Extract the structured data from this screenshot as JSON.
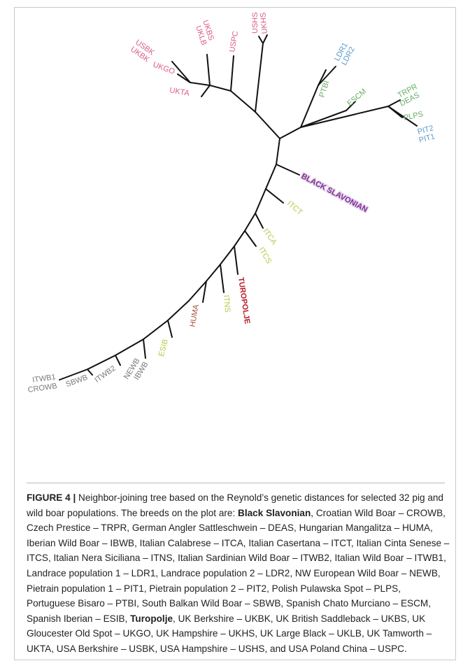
{
  "labels": {
    "ushs": "USHS",
    "ukhs": "UKHS",
    "uspc": "USPC",
    "ukbs": "UKBS",
    "uklb": "UKLB",
    "usbk": "USBK",
    "ukbk": "UKBK",
    "ukgo": "UKGO",
    "ukta": "UKTA",
    "ptbi": "PTBI",
    "ldr1": "LDR1",
    "ldr2": "LDR2",
    "escm": "ESCM",
    "trpr": "TRPR",
    "deas": "DEAS",
    "plps": "PLPS",
    "pit2": "PIT2",
    "pit1": "PIT1",
    "black_slavonian": "BLACK SLAVONIAN",
    "itct": "ITCT",
    "itca": "ITCA",
    "itcs": "ITCS",
    "turopolje": "TUROPOLJE",
    "itns": "ITNS",
    "huma": "HUMA",
    "esib": "ESIB",
    "newb": "NEWB",
    "ibwb": "IBWB",
    "itwb2": "ITWB2",
    "sbwb": "SBWB",
    "itwb1": "ITWB1",
    "crowb": "CROWB"
  },
  "caption": {
    "label": "FIGURE 4 |",
    "parts": [
      " Neighbor-joining tree based on the Reynold’s genetic distances for selected 32 pig and wild boar populations. The breeds on the plot are: ",
      "Black Slavonian",
      ", Croatian Wild Boar – CROWB, Czech Prestice – TRPR, German Angler Sattleschwein – DEAS, Hungarian Mangalitza – HUMA, Iberian Wild Boar – IBWB, Italian Calabrese – ITCA, Italian Casertana – ITCT, Italian Cinta Senese – ITCS, Italian Nera Siciliana – ITNS, Italian Sardinian Wild Boar – ITWB2, Italian Wild Boar – ITWB1, Landrace population 1 – LDR1, Landrace population 2 – LDR2, NW European Wild Boar – NEWB, Pietrain population 1 – PIT1, Pietrain population 2 – PIT2, Polish Pulawska Spot – PLPS, Portuguese Bisaro – PTBI, South Balkan Wild Boar – SBWB, Spanish Chato Murciano – ESCM, Spanish Iberian – ESIB, ",
      "Turopolje",
      ", UK Berkshire – UKBK, UK British Saddleback – UKBS, UK Gloucester Old Spot – UKGO, UK Hampshire – UKHS, UK Large Black – UKLB, UK Tamworth – UKTA, USA Berkshire – USBK, USA Hampshire – USHS, and USA Poland China – USPC."
    ]
  }
}
